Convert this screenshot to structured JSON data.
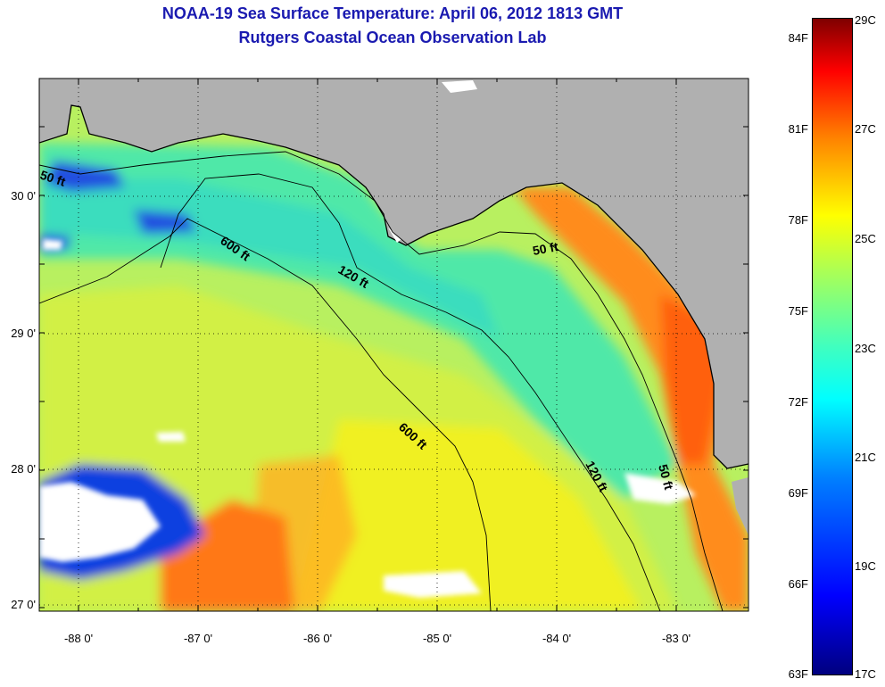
{
  "title_line1": "NOAA-19 Sea Surface Temperature:  April 06, 2012 1813 GMT",
  "title_line2": "Rutgers Coastal Ocean Observation Lab",
  "lon_ticks": [
    "-88 0'",
    "-87 0'",
    "-86 0'",
    "-85 0'",
    "-84 0'",
    "-83 0'"
  ],
  "lat_ticks": [
    "30 0'",
    "29 0'",
    "28 0'",
    "27 0'"
  ],
  "contour_labels": [
    "50 ft",
    "600 ft",
    "120 ft",
    "50 ft",
    "600 ft",
    "120 ft",
    "50 ft"
  ],
  "colorbar": {
    "fahrenheit": [
      "84F",
      "81F",
      "78F",
      "75F",
      "72F",
      "69F",
      "66F",
      "63F"
    ],
    "celsius": [
      "29C",
      "27C",
      "25C",
      "23C",
      "21C",
      "19C",
      "17C"
    ]
  },
  "colors": {
    "title": "#1a1ab0",
    "land": "#b0b0b0",
    "water_base": "#b8f060",
    "warm": "#ff8c1a",
    "cool": "#40e8b8",
    "cloud": "#ffffff"
  }
}
